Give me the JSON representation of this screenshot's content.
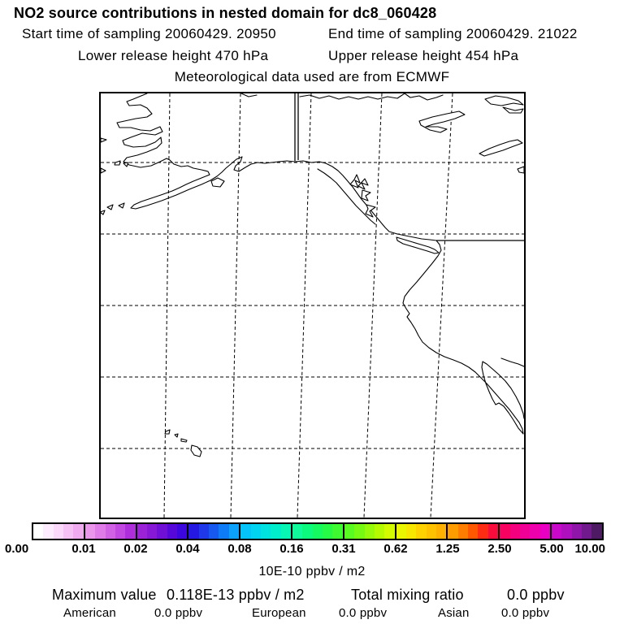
{
  "header": {
    "title": "NO2 source contributions in nested domain for dc8_060428",
    "start_time": "Start time of sampling 20060429. 20950",
    "end_time": "End time of sampling 20060429. 21022",
    "lower_release": "Lower release height  470 hPa",
    "upper_release": "Upper release height  454 hPa",
    "met_data": "Meteorological data used are from ECMWF"
  },
  "colorbar": {
    "tick_labels": [
      "0.00",
      "0.01",
      "0.02",
      "0.04",
      "0.08",
      "0.16",
      "0.31",
      "0.62",
      "1.25",
      "2.50",
      "5.00",
      "10.00"
    ],
    "unit_label": "10E-10 ppbv / m2",
    "cell_colors": [
      "#ffffff",
      "#fdecfd",
      "#fad9fa",
      "#f6c2f6",
      "#f0aaf0",
      "#ea96ea",
      "#df7ce8",
      "#d162e4",
      "#c148e0",
      "#ae2edc",
      "#9c22d8",
      "#8618d6",
      "#7010d6",
      "#5608da",
      "#3c06de",
      "#2418e2",
      "#1e38ea",
      "#1658f0",
      "#0e7cf6",
      "#0ca2fc",
      "#04c4fa",
      "#00d4f0",
      "#00e2e0",
      "#00eecc",
      "#08f6b4",
      "#10fa9c",
      "#0cfa7e",
      "#14fa60",
      "#26fa46",
      "#3efa30",
      "#58fa22",
      "#76fa14",
      "#96fa0a",
      "#b6fa02",
      "#d4fa00",
      "#eaf600",
      "#f6e600",
      "#fed200",
      "#ffc200",
      "#ffb000",
      "#ff9c00",
      "#ff7e00",
      "#ff5800",
      "#ff2c14",
      "#fa0c3c",
      "#f70260",
      "#f4007e",
      "#f10096",
      "#ee00ac",
      "#ea00c2",
      "#ca08ca",
      "#ae10be",
      "#9016aa",
      "#701a8e",
      "#4e1a64"
    ]
  },
  "footer": {
    "maximum_label": "Maximum value",
    "maximum_value": "0.118E-13 ppbv / m2",
    "total_label": "Total mixing ratio",
    "total_value": "0.0 ppbv",
    "regions": [
      {
        "name": "American",
        "value": "0.0 ppbv"
      },
      {
        "name": "European",
        "value": "0.0 ppbv"
      },
      {
        "name": "Asian",
        "value": "0.0 ppbv"
      }
    ]
  },
  "chart_data": {
    "type": "heatmap",
    "title": "NO2 source contributions in nested domain for dc8_060428",
    "subtitle": [
      "Start time of sampling 20060429. 20950  End time of sampling 20060429. 21022",
      "Lower release height 470 hPa  Upper release height 454 hPa",
      "Meteorological data used are from ECMWF"
    ],
    "map_region": "North Pacific / Alaska / western North America / Hawaii",
    "colorbar_ticks": [
      0.0,
      0.01,
      0.02,
      0.04,
      0.08,
      0.16,
      0.31,
      0.62,
      1.25,
      2.5,
      5.0,
      10.0
    ],
    "colorbar_unit": "10E-10 ppbv / m2",
    "field_values": "all grid cells below lowest contour (map shown blank/white)",
    "maximum_value": "0.118E-13 ppbv / m2",
    "total_mixing_ratio_ppbv": 0.0,
    "source_contributions_ppbv": {
      "American": 0.0,
      "European": 0.0,
      "Asian": 0.0
    },
    "grid": "dashed lat/lon graticule on",
    "legend_position": "horizontal colorbar below map"
  }
}
